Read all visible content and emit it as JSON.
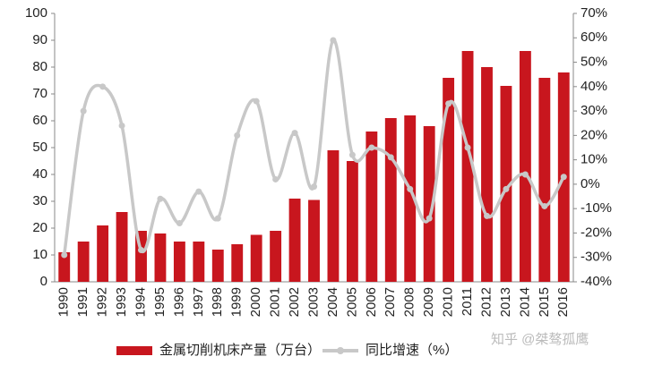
{
  "chart_data": {
    "type": "bar-line",
    "categories": [
      "1990",
      "1991",
      "1992",
      "1993",
      "1994",
      "1995",
      "1996",
      "1997",
      "1998",
      "1999",
      "2000",
      "2001",
      "2002",
      "2003",
      "2004",
      "2005",
      "2006",
      "2007",
      "2008",
      "2009",
      "2010",
      "2011",
      "2012",
      "2013",
      "2014",
      "2015",
      "2016"
    ],
    "series": [
      {
        "name": "金属切削机床产量（万台）",
        "color": "#c8161e",
        "type": "bar",
        "values": [
          11,
          15,
          21,
          26,
          19,
          18,
          15,
          15,
          12,
          14,
          17.5,
          19,
          31,
          30.5,
          49,
          45,
          56,
          61,
          62,
          58,
          76,
          86,
          80,
          73,
          86,
          76,
          78
        ]
      },
      {
        "name": "同比增速（%）",
        "color": "#c8c8c8",
        "type": "line",
        "axis": "y2",
        "values": [
          -29,
          30,
          40,
          24,
          -27,
          -6,
          -16,
          -3,
          -14,
          20,
          34,
          2,
          21,
          -1,
          59,
          12,
          15,
          11,
          -2,
          -14,
          33,
          15,
          -13,
          -2,
          4,
          -9,
          3
        ]
      }
    ],
    "ylim": [
      0,
      100
    ],
    "yticks": [
      0,
      10,
      20,
      30,
      40,
      50,
      60,
      70,
      80,
      90,
      100
    ],
    "y2lim": [
      -40,
      70
    ],
    "y2ticks": [
      {
        "value": -40,
        "label": "-40%"
      },
      {
        "value": -30,
        "label": "-30%"
      },
      {
        "value": -20,
        "label": "-20%"
      },
      {
        "value": -10,
        "label": "-10%"
      },
      {
        "value": 0,
        "label": "0%"
      },
      {
        "value": 10,
        "label": "10%"
      },
      {
        "value": 20,
        "label": "20%"
      },
      {
        "value": 30,
        "label": "30%"
      },
      {
        "value": 40,
        "label": "40%"
      },
      {
        "value": 50,
        "label": "50%"
      },
      {
        "value": 60,
        "label": "60%"
      },
      {
        "value": 70,
        "label": "70%"
      }
    ],
    "grid": false,
    "watermark": "知乎 @桀骜孤鹰"
  }
}
